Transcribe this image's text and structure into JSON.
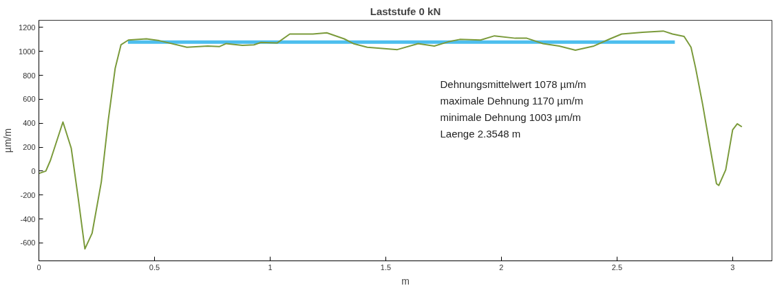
{
  "chart_data": {
    "type": "line",
    "title": "Laststufe 0 kN",
    "xlabel": "m",
    "ylabel": "µm/m",
    "xlim": [
      0,
      3.17
    ],
    "ylim": [
      -750,
      1260
    ],
    "xticks": [
      0,
      0.5,
      1,
      1.5,
      2,
      2.5,
      3
    ],
    "yticks": [
      -600,
      -400,
      -200,
      0,
      200,
      400,
      600,
      800,
      1000,
      1200
    ],
    "grid": false,
    "marker": "none",
    "line_style": "solid",
    "series": [
      {
        "color": "#7a9a3a",
        "x": [
          0,
          0.03,
          0.05,
          0.104,
          0.14,
          0.17,
          0.199,
          0.23,
          0.27,
          0.3,
          0.33,
          0.355,
          0.387,
          0.465,
          0.52,
          0.64,
          0.73,
          0.78,
          0.81,
          0.88,
          0.93,
          0.96,
          1.03,
          1.085,
          1.185,
          1.245,
          1.32,
          1.36,
          1.42,
          1.55,
          1.64,
          1.71,
          1.77,
          1.82,
          1.91,
          1.97,
          2.06,
          2.11,
          2.18,
          2.25,
          2.32,
          2.4,
          2.47,
          2.52,
          2.61,
          2.7,
          2.74,
          2.79,
          2.82,
          2.84,
          2.87,
          2.9,
          2.93,
          2.94,
          2.97,
          3.0,
          3.02,
          3.04
        ],
        "values": [
          -20,
          0,
          90,
          410,
          190,
          -225,
          -650,
          -520,
          -90,
          425,
          860,
          1055,
          1095,
          1105,
          1090,
          1035,
          1045,
          1040,
          1065,
          1050,
          1055,
          1075,
          1070,
          1145,
          1145,
          1155,
          1105,
          1065,
          1035,
          1015,
          1065,
          1045,
          1080,
          1100,
          1095,
          1130,
          1110,
          1110,
          1065,
          1045,
          1010,
          1045,
          1105,
          1145,
          1160,
          1170,
          1145,
          1125,
          1035,
          860,
          560,
          225,
          -105,
          -120,
          10,
          345,
          395,
          370
        ]
      },
      {
        "color": "#4dbeee",
        "x": [
          0.385,
          2.75
        ],
        "values": [
          1078,
          1078
        ]
      }
    ],
    "annotations": [
      "Dehnungsmittelwert 1078 µm/m",
      "maximale Dehnung 1170 µm/m",
      "minimale Dehnung 1003 µm/m",
      "Laenge 2.3548 m"
    ]
  }
}
